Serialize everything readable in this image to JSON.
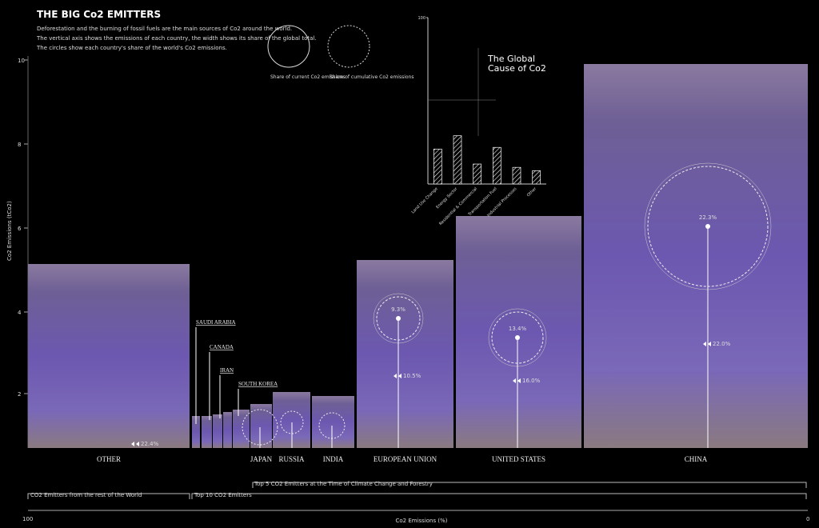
{
  "header": {
    "title": "THE BIG Co2 EMITTERS",
    "body": [
      "Deforestation and the burning of fossil fuels are the main sources of Co2 around the world.",
      "The vertical axis shows the emissions of each country, the width shows its share of the global total.",
      "The circles show each country's share of the world's Co2 emissions."
    ]
  },
  "legend": {
    "solid_circle": "Share of current Co2 emissions",
    "dotted_circle": "Share of cumulative Co2 emissions"
  },
  "chart_data": {
    "type": "bar",
    "title": "The Global\nCause of Co2",
    "categories": [
      "Land Use Change",
      "Energy Sector",
      "Residential & Commercial",
      "Transportation Fuel",
      "Industrial Processes",
      "Other"
    ],
    "values": [
      21,
      29,
      12,
      22,
      10,
      8
    ],
    "ylim": [
      0,
      100
    ],
    "yticks": [
      100
    ]
  },
  "axis": {
    "y_label": "Co2 Emissions (tCo2)",
    "yticks": [
      10,
      8,
      6,
      4,
      2
    ],
    "x_left": "100",
    "x_right": "0",
    "x_label": "Co2 Emissions (%)"
  },
  "countries": [
    {
      "name": "OTHER",
      "arrow": "22.4%"
    },
    {
      "name": "JAPAN"
    },
    {
      "name": "RUSSIA"
    },
    {
      "name": "INDIA"
    },
    {
      "name": "EUROPEAN UNION",
      "circle": "9.3%",
      "arrow": "10.5%"
    },
    {
      "name": "UNITED STATES",
      "circle": "13.4%",
      "arrow": "16.0%"
    },
    {
      "name": "CHINA",
      "circle": "22.3%",
      "arrow": "22.0%"
    }
  ],
  "small_countries": [
    "SAUDI ARABIA",
    "CANADA",
    "IRAN",
    "SOUTH KOREA"
  ],
  "brackets": {
    "top5": "Top 5 CO2 Emitters at the Time of Climate Change and Forestry",
    "rest": "CO2 Emitters from the rest of the World",
    "top10": "Top 10 CO2 Emitters"
  }
}
